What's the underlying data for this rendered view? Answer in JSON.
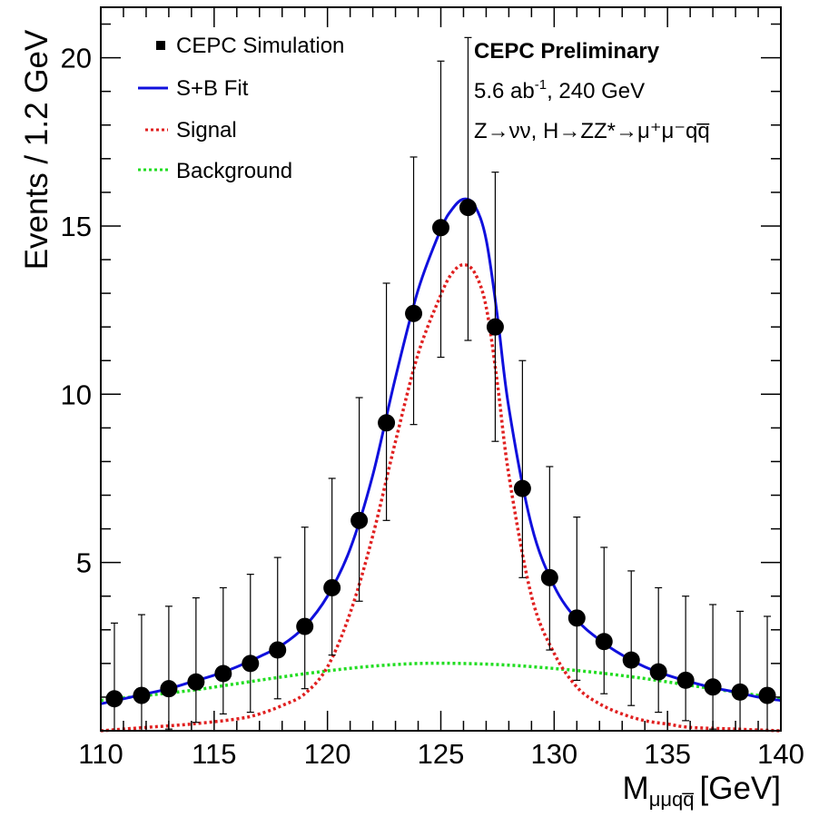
{
  "chart_data": {
    "type": "scatter",
    "xlabel": "M",
    "xlabel_sub": "μμqq̅",
    "xlabel_unit": "[GeV]",
    "ylabel": "Events / 1.2  GeV",
    "xlim": [
      110,
      140
    ],
    "ylim": [
      0,
      21.5
    ],
    "x_ticks": [
      110,
      115,
      120,
      125,
      130,
      135,
      140
    ],
    "y_ticks": [
      5,
      10,
      15,
      20
    ],
    "grid": false,
    "legend_position": "top-left",
    "legend": [
      {
        "label": "CEPC Simulation",
        "style": "marker",
        "color": "#000000"
      },
      {
        "label": "S+B Fit",
        "style": "solid",
        "color": "#1010dd"
      },
      {
        "label": "Signal",
        "style": "dotted",
        "color": "#e02020"
      },
      {
        "label": "Background",
        "style": "dotted",
        "color": "#22dd22"
      }
    ],
    "annotations": {
      "title": "CEPC Preliminary",
      "lumi_value": "5.6 ab",
      "lumi_sup": "-1",
      "lumi_rest": ", 240 GeV",
      "process": "Z→νν, H→ZZ*→μ⁺μ⁻qq̅"
    },
    "series": [
      {
        "name": "CEPC Simulation",
        "kind": "points",
        "x": [
          110.6,
          111.8,
          113.0,
          114.2,
          115.4,
          116.6,
          117.8,
          119.0,
          120.2,
          121.4,
          122.6,
          123.8,
          125.0,
          126.2,
          127.4,
          128.6,
          129.8,
          131.0,
          132.2,
          133.4,
          134.6,
          135.8,
          137.0,
          138.2,
          139.4
        ],
        "y": [
          0.95,
          1.05,
          1.25,
          1.45,
          1.7,
          2.0,
          2.4,
          3.1,
          4.25,
          6.25,
          9.15,
          12.4,
          14.95,
          15.55,
          12.0,
          7.2,
          4.55,
          3.35,
          2.65,
          2.1,
          1.75,
          1.5,
          1.3,
          1.15,
          1.05
        ],
        "y_err_low": [
          0.95,
          1.05,
          1.2,
          1.2,
          1.2,
          1.45,
          1.45,
          1.85,
          2.0,
          2.4,
          2.9,
          3.3,
          3.85,
          3.95,
          3.4,
          2.65,
          2.15,
          1.85,
          1.55,
          1.35,
          1.2,
          1.2,
          1.25,
          1.15,
          1.05
        ],
        "y_err_high": [
          2.25,
          2.4,
          2.45,
          2.5,
          2.55,
          2.65,
          2.75,
          2.95,
          3.25,
          3.65,
          4.15,
          4.65,
          4.95,
          5.05,
          4.6,
          3.8,
          3.3,
          3.0,
          2.8,
          2.65,
          2.5,
          2.5,
          2.45,
          2.4,
          2.35
        ]
      },
      {
        "name": "S+B Fit",
        "kind": "line",
        "x": [
          110.0,
          111.0,
          112.0,
          113.0,
          114.0,
          115.0,
          116.0,
          117.0,
          118.0,
          119.0,
          120.0,
          121.0,
          122.0,
          123.0,
          124.0,
          125.0,
          125.5,
          126.0,
          126.5,
          127.0,
          127.5,
          128.0,
          129.0,
          130.0,
          131.0,
          132.0,
          133.0,
          134.0,
          135.0,
          136.0,
          137.0,
          138.0,
          139.0,
          140.0
        ],
        "y": [
          0.8,
          0.95,
          1.1,
          1.25,
          1.45,
          1.65,
          1.9,
          2.2,
          2.55,
          3.1,
          4.0,
          5.4,
          7.6,
          10.5,
          13.1,
          14.9,
          15.5,
          15.8,
          15.6,
          14.6,
          12.3,
          9.6,
          6.1,
          4.3,
          3.3,
          2.7,
          2.25,
          1.9,
          1.65,
          1.45,
          1.28,
          1.15,
          1.0,
          0.9
        ]
      },
      {
        "name": "Signal",
        "kind": "line",
        "x": [
          110.0,
          112.0,
          114.0,
          116.0,
          117.0,
          118.0,
          119.0,
          120.0,
          121.0,
          122.0,
          123.0,
          124.0,
          125.0,
          125.5,
          126.0,
          126.5,
          127.0,
          127.5,
          128.0,
          129.0,
          130.0,
          131.0,
          132.0,
          133.0,
          134.0,
          135.0,
          136.0,
          138.0,
          140.0
        ],
        "y": [
          0.0,
          0.1,
          0.2,
          0.35,
          0.5,
          0.75,
          1.1,
          1.9,
          3.5,
          5.8,
          8.6,
          11.2,
          12.95,
          13.6,
          13.85,
          13.6,
          12.6,
          10.3,
          7.6,
          4.0,
          2.3,
          1.3,
          0.8,
          0.5,
          0.3,
          0.2,
          0.1,
          0.05,
          0.0
        ]
      },
      {
        "name": "Background",
        "kind": "line",
        "x": [
          110.0,
          112.0,
          114.0,
          116.0,
          118.0,
          120.0,
          122.0,
          124.0,
          126.0,
          128.0,
          130.0,
          132.0,
          134.0,
          136.0,
          138.0,
          140.0
        ],
        "y": [
          0.9,
          1.05,
          1.2,
          1.4,
          1.6,
          1.78,
          1.92,
          2.0,
          2.0,
          1.95,
          1.85,
          1.72,
          1.55,
          1.35,
          1.15,
          0.95
        ]
      }
    ]
  }
}
